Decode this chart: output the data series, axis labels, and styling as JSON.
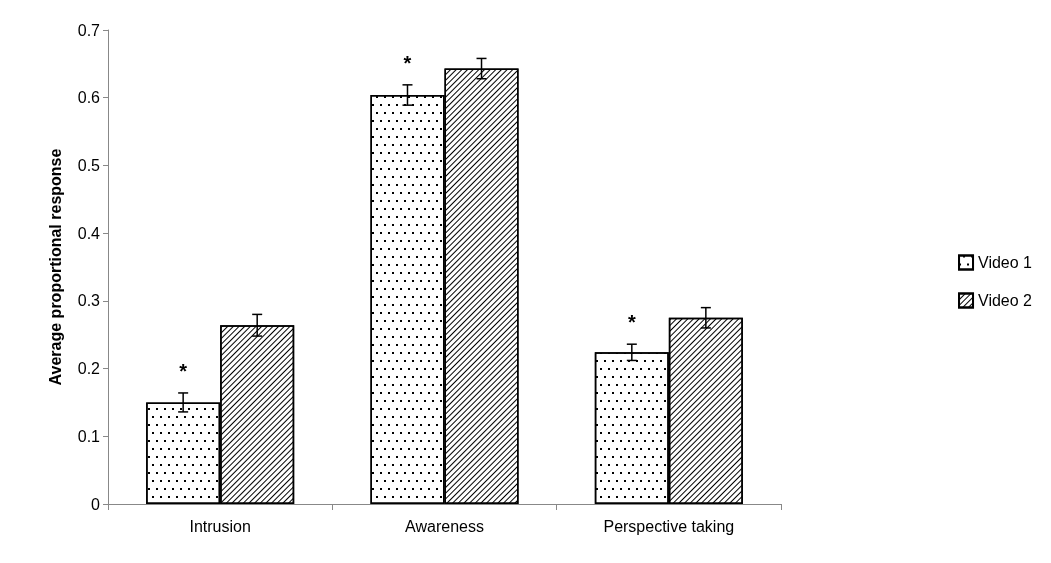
{
  "chart_data": {
    "type": "bar",
    "ylabel": "Average proportional response",
    "categories": [
      "Intrusion",
      "Awareness",
      "Perspective taking"
    ],
    "series": [
      {
        "name": "Video 1",
        "color": "#ffffff",
        "values": [
          0.15,
          0.604,
          0.224
        ],
        "errors": [
          0.014,
          0.015,
          0.012
        ]
      },
      {
        "name": "Video 2",
        "color": "#ffffff",
        "values": [
          0.264,
          0.643,
          0.275
        ],
        "errors": [
          0.016,
          0.015,
          0.015
        ]
      }
    ],
    "annotations": [
      {
        "text": "*",
        "x": "Intrusion",
        "y": 0.164
      },
      {
        "text": "*",
        "x": "Awareness",
        "y": 0.619
      },
      {
        "text": "*",
        "x": "Perspective taking",
        "y": 0.236
      }
    ],
    "ylim": [
      0,
      0.7
    ],
    "yticks": [
      0,
      0.1,
      0.2,
      0.3,
      0.4,
      0.5,
      0.6,
      0.7
    ],
    "grid": false,
    "legend": "right"
  }
}
